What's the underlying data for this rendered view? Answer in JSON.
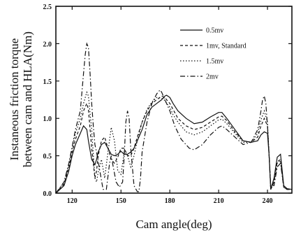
{
  "chart_data": {
    "type": "line",
    "title": "",
    "xlabel": "Cam angle(deg)",
    "ylabel": "Instaneous friction torque between cam and HLA(Nm)",
    "ylabel_lines": [
      "Instaneous friction torque",
      "between cam and HLA(Nm)"
    ],
    "xlim": [
      110,
      255
    ],
    "ylim": [
      0,
      2.5
    ],
    "xticks": [
      120,
      150,
      180,
      210,
      240
    ],
    "xtick_labels": [
      "120",
      "150",
      "180",
      "210",
      "240"
    ],
    "yticks": [
      0,
      0.5,
      1.0,
      1.5,
      2.0,
      2.5
    ],
    "ytick_labels": [
      "0.0",
      "0.5",
      "1.0",
      "1.5",
      "2.0",
      "2.5"
    ],
    "grid": false,
    "legend_position": "top-right",
    "series": [
      {
        "name": "0.5mv",
        "dash": "solid",
        "x": [
          110,
          115,
          118,
          120,
          122,
          125,
          127,
          129,
          130,
          132,
          134,
          135,
          136,
          138,
          140,
          142,
          144,
          146,
          148,
          150,
          152,
          154,
          156,
          158,
          160,
          163,
          166,
          169,
          172,
          175,
          177,
          178,
          180,
          182,
          185,
          190,
          195,
          200,
          205,
          210,
          212,
          215,
          220,
          225,
          230,
          234,
          236,
          238,
          240,
          241,
          242,
          244,
          246,
          248,
          250,
          252,
          255
        ],
        "y": [
          0,
          0.1,
          0.3,
          0.5,
          0.65,
          0.8,
          0.9,
          0.85,
          0.7,
          0.45,
          0.38,
          0.45,
          0.55,
          0.65,
          0.68,
          0.6,
          0.52,
          0.5,
          0.52,
          0.56,
          0.52,
          0.52,
          0.55,
          0.6,
          0.7,
          0.85,
          1.05,
          1.15,
          1.2,
          1.25,
          1.3,
          1.31,
          1.28,
          1.2,
          1.1,
          1.0,
          0.93,
          0.95,
          1.02,
          1.08,
          1.08,
          1.0,
          0.85,
          0.7,
          0.68,
          0.7,
          0.78,
          0.82,
          0.8,
          0.5,
          0.05,
          0.2,
          0.48,
          0.52,
          0.1,
          0.06,
          0.05
        ]
      },
      {
        "name": "1mv, Standard",
        "dash": "4,3",
        "x": [
          110,
          115,
          118,
          120,
          122,
          125,
          127,
          129,
          130,
          132,
          134,
          135,
          136,
          138,
          140,
          142,
          144,
          146,
          148,
          150,
          152,
          154,
          156,
          158,
          160,
          163,
          166,
          169,
          172,
          175,
          177,
          178,
          180,
          182,
          185,
          190,
          195,
          200,
          205,
          210,
          212,
          215,
          220,
          225,
          230,
          234,
          236,
          238,
          240,
          241,
          242,
          244,
          246,
          248,
          250,
          252,
          255
        ],
        "y": [
          0,
          0.12,
          0.35,
          0.55,
          0.72,
          0.9,
          1.1,
          1.2,
          1.12,
          0.6,
          0.2,
          0.3,
          0.5,
          0.7,
          0.75,
          0.6,
          0.45,
          0.4,
          0.48,
          0.6,
          0.6,
          0.5,
          0.5,
          0.6,
          0.75,
          0.95,
          1.1,
          1.2,
          1.25,
          1.3,
          1.28,
          1.25,
          1.2,
          1.12,
          1.0,
          0.9,
          0.85,
          0.88,
          0.95,
          1.02,
          1.03,
          0.97,
          0.82,
          0.7,
          0.68,
          0.75,
          0.9,
          1.0,
          0.9,
          0.5,
          0.05,
          0.15,
          0.42,
          0.45,
          0.08,
          0.05,
          0.05
        ]
      },
      {
        "name": "1.5mv",
        "dash": "1.5,2.5",
        "x": [
          110,
          115,
          118,
          120,
          122,
          125,
          127,
          129,
          130,
          132,
          134,
          135,
          136,
          138,
          140,
          142,
          144,
          146,
          148,
          150,
          152,
          154,
          156,
          158,
          160,
          163,
          166,
          169,
          172,
          175,
          177,
          178,
          180,
          182,
          185,
          190,
          195,
          200,
          205,
          210,
          212,
          215,
          220,
          225,
          230,
          234,
          236,
          238,
          240,
          241,
          242,
          244,
          246,
          248,
          250,
          252,
          255
        ],
        "y": [
          0,
          0.14,
          0.38,
          0.6,
          0.8,
          1.0,
          1.2,
          1.35,
          1.3,
          0.85,
          0.2,
          0.15,
          0.28,
          0.45,
          0.2,
          0.55,
          0.88,
          0.7,
          0.3,
          0.25,
          0.55,
          0.5,
          0.35,
          0.5,
          0.7,
          0.95,
          1.12,
          1.22,
          1.28,
          1.27,
          1.24,
          1.2,
          1.15,
          1.05,
          0.95,
          0.82,
          0.78,
          0.82,
          0.9,
          0.98,
          0.99,
          0.93,
          0.8,
          0.68,
          0.68,
          0.8,
          0.98,
          1.1,
          0.95,
          0.5,
          0.05,
          0.15,
          0.4,
          0.43,
          0.08,
          0.05,
          0.05
        ]
      },
      {
        "name": "2mv",
        "dash": "7,3,1.5,3",
        "x": [
          110,
          115,
          118,
          120,
          122,
          125,
          127,
          128,
          129,
          130,
          131,
          132,
          133,
          134,
          135,
          137,
          139,
          141,
          143,
          144,
          145,
          147,
          149,
          151,
          152,
          153,
          154,
          155,
          156,
          158,
          160,
          161,
          162,
          163,
          166,
          169,
          172,
          174,
          175,
          177,
          180,
          183,
          187,
          192,
          195,
          200,
          205,
          210,
          212,
          215,
          220,
          225,
          230,
          234,
          236,
          237,
          238,
          239,
          240,
          241,
          242,
          244,
          246,
          248,
          250,
          252,
          255
        ],
        "y": [
          0,
          0.15,
          0.4,
          0.62,
          0.85,
          1.1,
          1.6,
          1.85,
          2.0,
          1.95,
          1.6,
          1.2,
          0.9,
          0.65,
          0.55,
          0.3,
          0.05,
          0.05,
          0.4,
          0.5,
          0.38,
          0.15,
          0.08,
          0.15,
          0.5,
          0.95,
          1.1,
          1.0,
          0.6,
          0.1,
          0.02,
          0.02,
          0.2,
          0.55,
          0.95,
          1.2,
          1.33,
          1.38,
          1.35,
          1.25,
          1.1,
          0.9,
          0.72,
          0.6,
          0.58,
          0.65,
          0.78,
          0.88,
          0.9,
          0.85,
          0.75,
          0.65,
          0.68,
          0.85,
          1.1,
          1.25,
          1.3,
          1.2,
          0.9,
          0.5,
          0.1,
          0.1,
          0.35,
          0.4,
          0.08,
          0.05,
          0.05
        ]
      }
    ]
  }
}
